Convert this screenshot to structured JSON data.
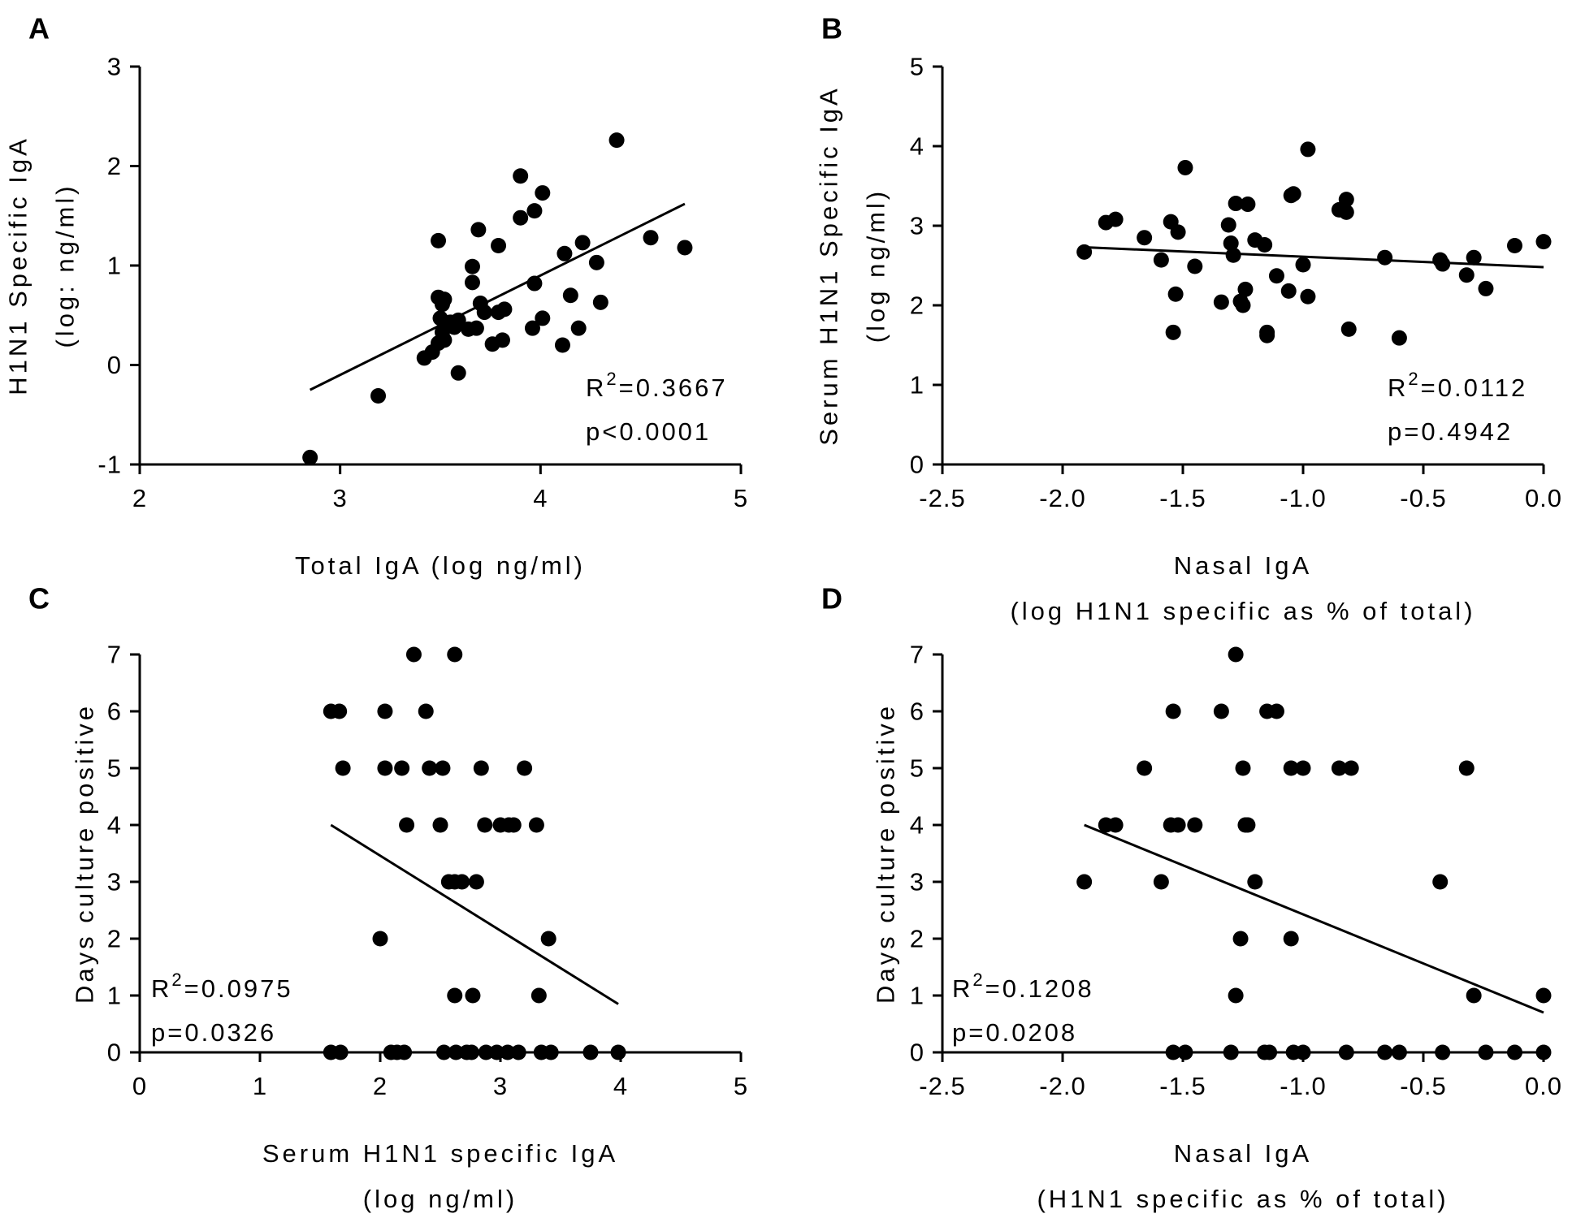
{
  "chart_data": [
    {
      "panel": "A",
      "type": "scatter",
      "xlabel": "Total IgA (log ng/ml)",
      "ylabel_lines": [
        "H1N1 Specific IgA",
        "(log: ng/ml)"
      ],
      "xlim": [
        2,
        5
      ],
      "ylim": [
        -1,
        3
      ],
      "xticks": [
        "2",
        "3",
        "4",
        "5"
      ],
      "yticks": [
        "-1",
        "0",
        "1",
        "2",
        "3"
      ],
      "r2_label": "R",
      "r2_sup": "2",
      "r2_value": "=0.3667",
      "p_label": "p<0.0001",
      "regression": {
        "x": [
          2.85,
          4.72
        ],
        "y": [
          -0.25,
          1.62
        ]
      },
      "points": [
        [
          2.85,
          -0.93
        ],
        [
          3.19,
          -0.31
        ],
        [
          3.42,
          0.07
        ],
        [
          3.46,
          0.13
        ],
        [
          3.49,
          0.22
        ],
        [
          3.49,
          1.25
        ],
        [
          3.49,
          0.68
        ],
        [
          3.5,
          0.47
        ],
        [
          3.51,
          0.33
        ],
        [
          3.51,
          0.61
        ],
        [
          3.52,
          0.25
        ],
        [
          3.52,
          0.66
        ],
        [
          3.55,
          0.43
        ],
        [
          3.57,
          0.38
        ],
        [
          3.59,
          0.45
        ],
        [
          3.59,
          -0.08
        ],
        [
          3.64,
          0.36
        ],
        [
          3.66,
          0.99
        ],
        [
          3.66,
          0.83
        ],
        [
          3.68,
          0.37
        ],
        [
          3.69,
          1.36
        ],
        [
          3.7,
          0.62
        ],
        [
          3.72,
          0.53
        ],
        [
          3.76,
          0.21
        ],
        [
          3.79,
          1.2
        ],
        [
          3.79,
          0.53
        ],
        [
          3.81,
          0.25
        ],
        [
          3.82,
          0.56
        ],
        [
          3.9,
          1.48
        ],
        [
          3.9,
          1.9
        ],
        [
          3.96,
          0.37
        ],
        [
          3.97,
          0.82
        ],
        [
          3.97,
          1.55
        ],
        [
          4.01,
          0.47
        ],
        [
          4.01,
          1.73
        ],
        [
          4.11,
          0.2
        ],
        [
          4.12,
          1.12
        ],
        [
          4.15,
          0.7
        ],
        [
          4.19,
          0.37
        ],
        [
          4.21,
          1.23
        ],
        [
          4.28,
          1.03
        ],
        [
          4.3,
          0.63
        ],
        [
          4.38,
          2.26
        ],
        [
          4.55,
          1.28
        ],
        [
          4.72,
          1.18
        ]
      ]
    },
    {
      "panel": "B",
      "type": "scatter",
      "xlabel": "Nasal IgA",
      "xlabel2": "(log H1N1 specific as % of total)",
      "ylabel_lines": [
        "Serum H1N1 Specific IgA",
        "(log ng/ml)"
      ],
      "xlim": [
        -2.5,
        0.0
      ],
      "ylim": [
        0,
        5
      ],
      "xticks": [
        "-2.5",
        "-2.0",
        "-1.5",
        "-1.0",
        "-0.5",
        "0.0"
      ],
      "yticks": [
        "0",
        "1",
        "2",
        "3",
        "4",
        "5"
      ],
      "r2_label": "R",
      "r2_sup": "2",
      "r2_value": "=0.0112",
      "p_label": "p=0.4942",
      "regression": {
        "x": [
          -1.91,
          0.0
        ],
        "y": [
          2.73,
          2.48
        ]
      },
      "points": [
        [
          -1.91,
          2.67
        ],
        [
          -1.82,
          3.04
        ],
        [
          -1.78,
          3.08
        ],
        [
          -1.66,
          2.85
        ],
        [
          -1.59,
          2.57
        ],
        [
          -1.55,
          3.05
        ],
        [
          -1.54,
          1.66
        ],
        [
          -1.53,
          2.14
        ],
        [
          -1.52,
          2.92
        ],
        [
          -1.49,
          3.73
        ],
        [
          -1.45,
          2.49
        ],
        [
          -1.34,
          2.04
        ],
        [
          -1.31,
          3.01
        ],
        [
          -1.3,
          2.78
        ],
        [
          -1.29,
          2.63
        ],
        [
          -1.28,
          3.28
        ],
        [
          -1.26,
          2.05
        ],
        [
          -1.25,
          2.0
        ],
        [
          -1.24,
          2.2
        ],
        [
          -1.23,
          3.27
        ],
        [
          -1.2,
          2.82
        ],
        [
          -1.16,
          2.76
        ],
        [
          -1.15,
          1.62
        ],
        [
          -1.15,
          1.66
        ],
        [
          -1.11,
          2.37
        ],
        [
          -1.06,
          2.18
        ],
        [
          -1.05,
          3.38
        ],
        [
          -1.04,
          3.4
        ],
        [
          -1.0,
          2.51
        ],
        [
          -0.98,
          2.11
        ],
        [
          -0.98,
          3.96
        ],
        [
          -0.85,
          3.2
        ],
        [
          -0.82,
          3.17
        ],
        [
          -0.82,
          3.33
        ],
        [
          -0.81,
          1.7
        ],
        [
          -0.66,
          2.6
        ],
        [
          -0.6,
          1.59
        ],
        [
          -0.43,
          2.57
        ],
        [
          -0.42,
          2.52
        ],
        [
          -0.32,
          2.38
        ],
        [
          -0.29,
          2.6
        ],
        [
          -0.24,
          2.21
        ],
        [
          -0.12,
          2.75
        ],
        [
          0.0,
          2.8
        ]
      ]
    },
    {
      "panel": "C",
      "type": "scatter",
      "xlabel": "Serum H1N1 specific IgA",
      "xlabel2": "(log ng/ml)",
      "ylabel_lines": [
        "Days culture positive"
      ],
      "xlim": [
        0,
        5
      ],
      "ylim": [
        0,
        7
      ],
      "xticks": [
        "0",
        "1",
        "2",
        "3",
        "4",
        "5"
      ],
      "yticks": [
        "0",
        "1",
        "2",
        "3",
        "4",
        "5",
        "6",
        "7"
      ],
      "r2_label": "R",
      "r2_sup": "2",
      "r2_value": "=0.0975",
      "p_label": "p=0.0326",
      "regression": {
        "x": [
          1.59,
          3.98
        ],
        "y": [
          4.0,
          0.85
        ]
      },
      "points": [
        [
          1.59,
          6
        ],
        [
          1.66,
          6
        ],
        [
          1.69,
          5
        ],
        [
          2.0,
          2
        ],
        [
          2.04,
          5
        ],
        [
          2.04,
          6
        ],
        [
          2.18,
          5
        ],
        [
          2.22,
          4
        ],
        [
          2.28,
          7
        ],
        [
          2.38,
          6
        ],
        [
          2.41,
          5
        ],
        [
          2.5,
          4
        ],
        [
          2.52,
          5
        ],
        [
          2.57,
          3
        ],
        [
          2.62,
          3
        ],
        [
          2.62,
          7
        ],
        [
          2.68,
          3
        ],
        [
          2.8,
          3
        ],
        [
          2.84,
          5
        ],
        [
          2.87,
          4
        ],
        [
          3.0,
          4
        ],
        [
          3.07,
          4
        ],
        [
          3.11,
          4
        ],
        [
          3.2,
          5
        ],
        [
          3.3,
          4
        ],
        [
          3.4,
          2
        ],
        [
          2.62,
          1
        ],
        [
          2.77,
          1
        ],
        [
          3.32,
          1
        ],
        [
          1.59,
          0
        ],
        [
          1.67,
          0
        ],
        [
          2.09,
          0
        ],
        [
          2.14,
          0
        ],
        [
          2.2,
          0
        ],
        [
          2.53,
          0
        ],
        [
          2.63,
          0
        ],
        [
          2.72,
          0
        ],
        [
          2.76,
          0
        ],
        [
          2.88,
          0
        ],
        [
          2.97,
          0
        ],
        [
          3.06,
          0
        ],
        [
          3.15,
          0
        ],
        [
          3.34,
          0
        ],
        [
          3.42,
          0
        ],
        [
          3.75,
          0
        ],
        [
          3.98,
          0
        ]
      ]
    },
    {
      "panel": "D",
      "type": "scatter",
      "xlabel": "Nasal IgA",
      "xlabel2": "(H1N1 specific as % of total)",
      "ylabel_lines": [
        "Days culture positive"
      ],
      "xlim": [
        -2.5,
        0.0
      ],
      "ylim": [
        0,
        7
      ],
      "xticks": [
        "-2.5",
        "-2.0",
        "-1.5",
        "-1.0",
        "-0.5",
        "0.0"
      ],
      "yticks": [
        "0",
        "1",
        "2",
        "3",
        "4",
        "5",
        "6",
        "7"
      ],
      "r2_label": "R",
      "r2_sup": "2",
      "r2_value": "=0.1208",
      "p_label": "p=0.0208",
      "regression": {
        "x": [
          -1.91,
          0.0
        ],
        "y": [
          4.0,
          0.7
        ]
      },
      "points": [
        [
          -1.91,
          3
        ],
        [
          -1.82,
          4
        ],
        [
          -1.78,
          4
        ],
        [
          -1.66,
          5
        ],
        [
          -1.59,
          3
        ],
        [
          -1.55,
          4
        ],
        [
          -1.54,
          6
        ],
        [
          -1.52,
          4
        ],
        [
          -1.45,
          4
        ],
        [
          -1.34,
          6
        ],
        [
          -1.28,
          7
        ],
        [
          -1.25,
          5
        ],
        [
          -1.24,
          4
        ],
        [
          -1.23,
          4
        ],
        [
          -1.2,
          3
        ],
        [
          -1.15,
          6
        ],
        [
          -1.11,
          6
        ],
        [
          -1.05,
          5
        ],
        [
          -1.0,
          5
        ],
        [
          -0.85,
          5
        ],
        [
          -0.8,
          5
        ],
        [
          -0.43,
          3
        ],
        [
          -0.32,
          5
        ],
        [
          -1.26,
          2
        ],
        [
          -1.05,
          2
        ],
        [
          -1.28,
          1
        ],
        [
          -0.29,
          1
        ],
        [
          0.0,
          1
        ],
        [
          -1.54,
          0
        ],
        [
          -1.49,
          0
        ],
        [
          -1.3,
          0
        ],
        [
          -1.16,
          0
        ],
        [
          -1.14,
          0
        ],
        [
          -1.04,
          0
        ],
        [
          -1.0,
          0
        ],
        [
          -0.82,
          0
        ],
        [
          -0.66,
          0
        ],
        [
          -0.6,
          0
        ],
        [
          -0.42,
          0
        ],
        [
          -0.24,
          0
        ],
        [
          -0.12,
          0
        ],
        [
          0.0,
          0
        ]
      ]
    }
  ]
}
